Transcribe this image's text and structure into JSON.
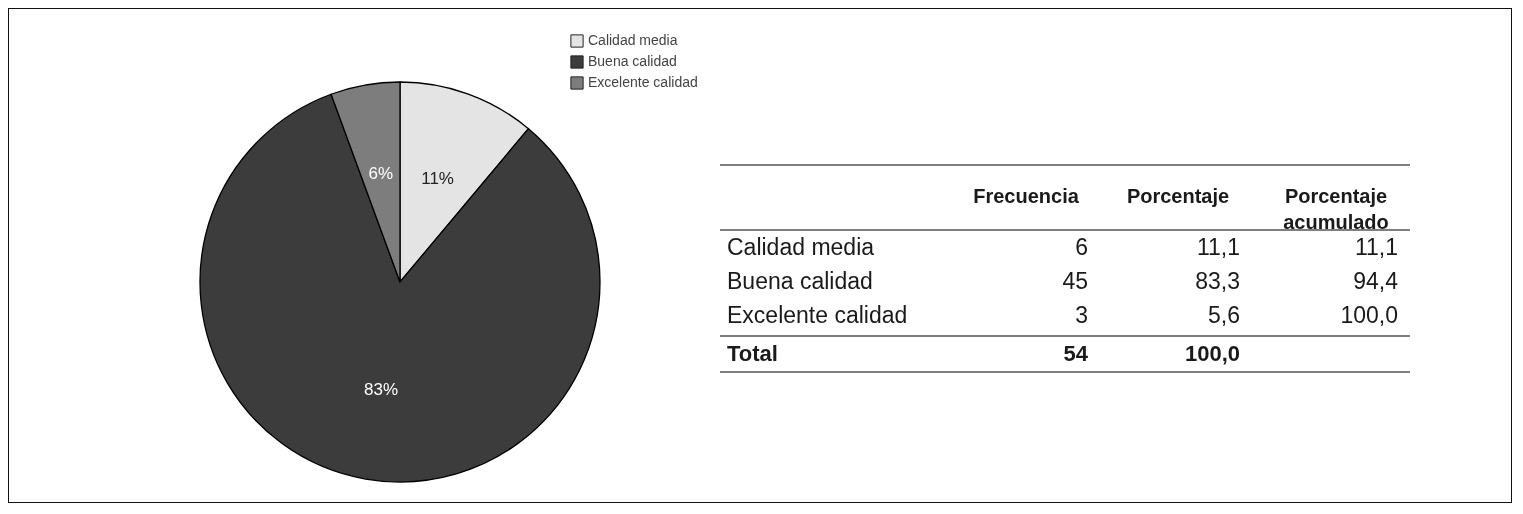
{
  "chart_data": [
    {
      "type": "pie",
      "categories": [
        "Calidad media",
        "Buena calidad",
        "Excelente calidad"
      ],
      "values": [
        11.1,
        83.3,
        5.6
      ],
      "colors": [
        "#e4e4e4",
        "#3c3c3c",
        "#7d7d7d"
      ],
      "value_labels": [
        "11%",
        "83%",
        "6%"
      ],
      "legend": "top right"
    },
    {
      "type": "other",
      "categories": [
        "Calidad media",
        "Buena calidad",
        "Excelente calidad",
        "Total"
      ],
      "series": [
        {
          "name": "Frecuencia",
          "values": [
            6,
            45,
            3,
            54
          ],
          "value_labels": [
            "6",
            "45",
            "3",
            "54"
          ]
        },
        {
          "name": "Porcentaje",
          "values": [
            11.1,
            83.3,
            5.6,
            100.0
          ],
          "value_labels": [
            "11,1",
            "83,3",
            "5,6",
            "100,0"
          ]
        },
        {
          "name": "Porcentaje acumulado",
          "values": [
            11.1,
            94.4,
            100.0,
            null
          ],
          "value_labels": [
            "11,1",
            "94,4",
            "100,0",
            null
          ]
        }
      ]
    }
  ]
}
